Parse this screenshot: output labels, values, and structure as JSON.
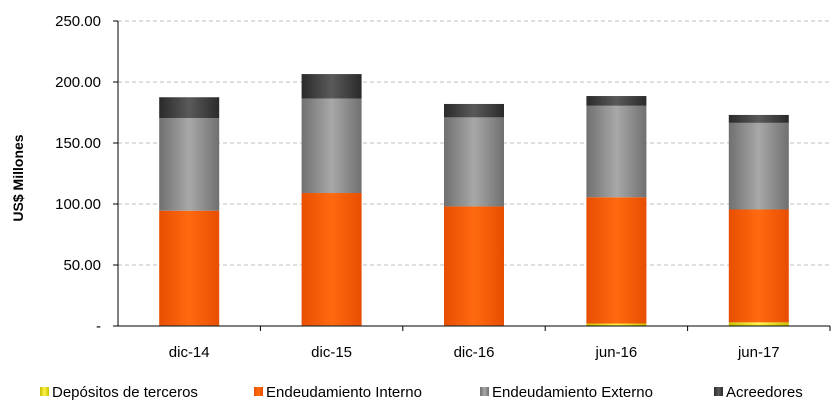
{
  "chart_data": {
    "type": "bar",
    "stacked": true,
    "categories": [
      "dic-14",
      "dic-15",
      "dic-16",
      "jun-16",
      "jun-17"
    ],
    "series": [
      {
        "name": "Depósitos de terceros",
        "values": [
          0.5,
          0.5,
          0.5,
          2.0,
          3.0
        ],
        "color": "#e8e000"
      },
      {
        "name": "Endeudamiento Interno",
        "values": [
          94.0,
          108.5,
          97.5,
          103.5,
          92.5
        ],
        "color": "#f25a00"
      },
      {
        "name": "Endeudamiento Externo",
        "values": [
          76.0,
          77.5,
          73.0,
          75.0,
          71.0
        ],
        "color": "#8c8c8c"
      },
      {
        "name": "Acreedores",
        "values": [
          17.0,
          20.0,
          11.0,
          8.0,
          6.5
        ],
        "color": "#404040"
      }
    ],
    "ylabel": "US$ Millones",
    "ylim": [
      0,
      250
    ],
    "yticks": [
      0,
      50,
      100,
      150,
      200,
      250
    ],
    "ytick_labels": [
      "-",
      "50.00",
      "100.00",
      "150.00",
      "200.00",
      "250.00"
    ],
    "grid": true,
    "legend_position": "bottom"
  }
}
